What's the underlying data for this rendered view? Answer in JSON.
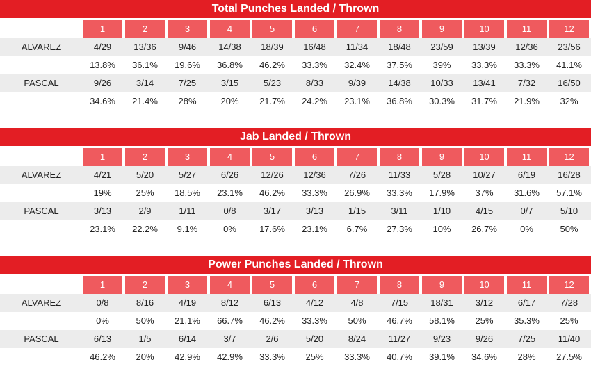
{
  "chart_data": [
    {
      "type": "table",
      "title": "Total Punches Landed / Thrown",
      "rounds": [
        "1",
        "2",
        "3",
        "4",
        "5",
        "6",
        "7",
        "8",
        "9",
        "10",
        "11",
        "12"
      ],
      "rows": [
        {
          "fighter": "ALVAREZ",
          "landed_thrown": [
            "4/29",
            "13/36",
            "9/46",
            "14/38",
            "18/39",
            "16/48",
            "11/34",
            "18/48",
            "23/59",
            "13/39",
            "12/36",
            "23/56"
          ],
          "pct": [
            "13.8%",
            "36.1%",
            "19.6%",
            "36.8%",
            "46.2%",
            "33.3%",
            "32.4%",
            "37.5%",
            "39%",
            "33.3%",
            "33.3%",
            "41.1%"
          ]
        },
        {
          "fighter": "PASCAL",
          "landed_thrown": [
            "9/26",
            "3/14",
            "7/25",
            "3/15",
            "5/23",
            "8/33",
            "9/39",
            "14/38",
            "10/33",
            "13/41",
            "7/32",
            "16/50"
          ],
          "pct": [
            "34.6%",
            "21.4%",
            "28%",
            "20%",
            "21.7%",
            "24.2%",
            "23.1%",
            "36.8%",
            "30.3%",
            "31.7%",
            "21.9%",
            "32%"
          ]
        }
      ]
    },
    {
      "type": "table",
      "title": "Jab Landed / Thrown",
      "rounds": [
        "1",
        "2",
        "3",
        "4",
        "5",
        "6",
        "7",
        "8",
        "9",
        "10",
        "11",
        "12"
      ],
      "rows": [
        {
          "fighter": "ALVAREZ",
          "landed_thrown": [
            "4/21",
            "5/20",
            "5/27",
            "6/26",
            "12/26",
            "12/36",
            "7/26",
            "11/33",
            "5/28",
            "10/27",
            "6/19",
            "16/28"
          ],
          "pct": [
            "19%",
            "25%",
            "18.5%",
            "23.1%",
            "46.2%",
            "33.3%",
            "26.9%",
            "33.3%",
            "17.9%",
            "37%",
            "31.6%",
            "57.1%"
          ]
        },
        {
          "fighter": "PASCAL",
          "landed_thrown": [
            "3/13",
            "2/9",
            "1/11",
            "0/8",
            "3/17",
            "3/13",
            "1/15",
            "3/11",
            "1/10",
            "4/15",
            "0/7",
            "5/10"
          ],
          "pct": [
            "23.1%",
            "22.2%",
            "9.1%",
            "0%",
            "17.6%",
            "23.1%",
            "6.7%",
            "27.3%",
            "10%",
            "26.7%",
            "0%",
            "50%"
          ]
        }
      ]
    },
    {
      "type": "table",
      "title": "Power Punches Landed / Thrown",
      "rounds": [
        "1",
        "2",
        "3",
        "4",
        "5",
        "6",
        "7",
        "8",
        "9",
        "10",
        "11",
        "12"
      ],
      "rows": [
        {
          "fighter": "ALVAREZ",
          "landed_thrown": [
            "0/8",
            "8/16",
            "4/19",
            "8/12",
            "6/13",
            "4/12",
            "4/8",
            "7/15",
            "18/31",
            "3/12",
            "6/17",
            "7/28"
          ],
          "pct": [
            "0%",
            "50%",
            "21.1%",
            "66.7%",
            "46.2%",
            "33.3%",
            "50%",
            "46.7%",
            "58.1%",
            "25%",
            "35.3%",
            "25%"
          ]
        },
        {
          "fighter": "PASCAL",
          "landed_thrown": [
            "6/13",
            "1/5",
            "6/14",
            "3/7",
            "2/6",
            "5/20",
            "8/24",
            "11/27",
            "9/23",
            "9/26",
            "7/25",
            "11/40"
          ],
          "pct": [
            "46.2%",
            "20%",
            "42.9%",
            "42.9%",
            "33.3%",
            "25%",
            "33.3%",
            "40.7%",
            "39.1%",
            "34.6%",
            "28%",
            "27.5%"
          ]
        }
      ]
    }
  ],
  "colors": {
    "title_bg": "#e31e24",
    "header_bg": "#ef5a5e",
    "row_alt": "#ececec"
  }
}
